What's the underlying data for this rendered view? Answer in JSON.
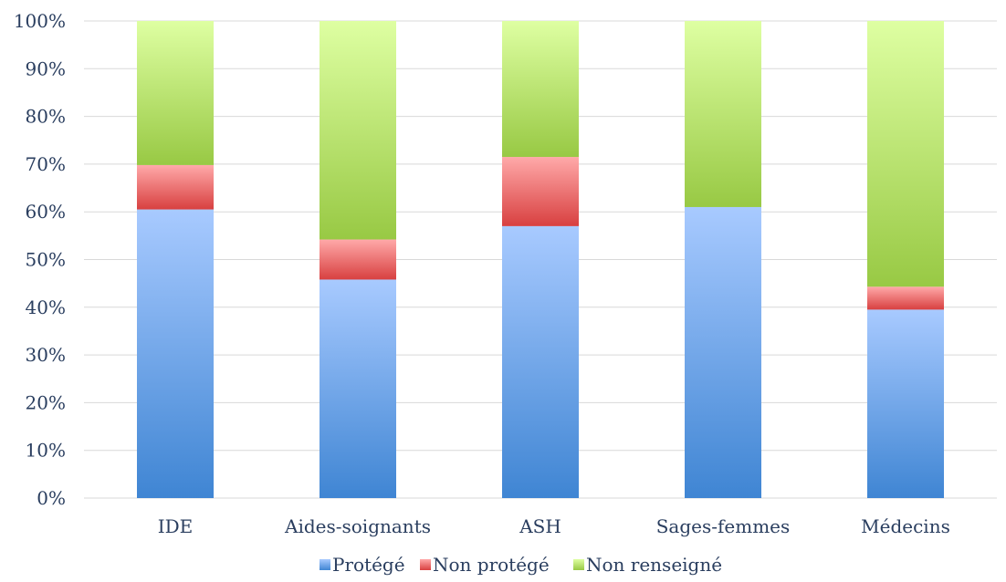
{
  "chart_data": {
    "type": "bar",
    "stacked": true,
    "categories": [
      "IDE",
      "Aides-soignants",
      "ASH",
      "Sages-femmes",
      "Médecins"
    ],
    "series": [
      {
        "name": "Protégé",
        "values": [
          60.5,
          45.8,
          57.0,
          61.0,
          39.5
        ],
        "color": "#5b9bd5"
      },
      {
        "name": "Non protégé",
        "values": [
          9.3,
          8.4,
          14.5,
          0,
          4.8
        ],
        "color": "#e06666"
      },
      {
        "name": "Non renseigné",
        "values": [
          30.2,
          45.8,
          28.5,
          39.0,
          55.7
        ],
        "color": "#a9d55a"
      }
    ],
    "ylim": [
      0,
      100
    ],
    "yticks": [
      "0%",
      "10%",
      "20%",
      "30%",
      "40%",
      "50%",
      "60%",
      "70%",
      "80%",
      "90%",
      "100%"
    ],
    "grid": true,
    "legend_position": "bottom"
  }
}
